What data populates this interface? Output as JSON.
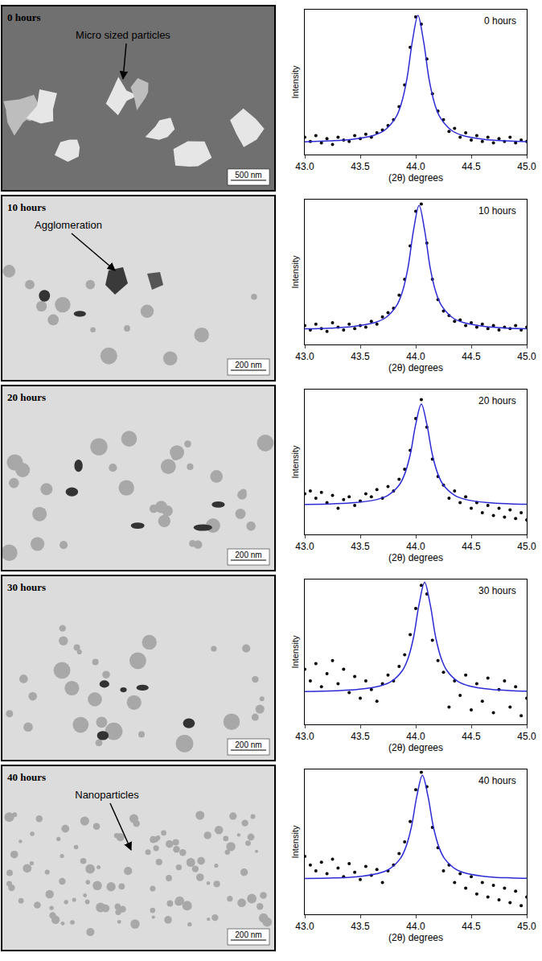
{
  "micrographs": [
    {
      "label": "0 hours",
      "annotation": "Micro sized particles",
      "scale_bar": "500 nm"
    },
    {
      "label": "10 hours",
      "annotation": "Agglomeration",
      "scale_bar": "200 nm"
    },
    {
      "label": "20 hours",
      "scale_bar": "200 nm"
    },
    {
      "label": "30 hours",
      "scale_bar": "200 nm"
    },
    {
      "label": "40 hours",
      "annotation": "Nanoparticles",
      "scale_bar": "200 nm"
    }
  ],
  "chart_data": [
    {
      "type": "scatter",
      "annotations": [
        "0 hours"
      ],
      "x_label": "(2θ) degrees",
      "y_label": "Intensity",
      "xlim": [
        43,
        45
      ],
      "xticks": [
        {
          "value": 43,
          "label": "43.0"
        },
        43.5,
        {
          "value": 44,
          "label": "44.0"
        },
        44.5,
        {
          "value": 45,
          "label": "45.0"
        }
      ],
      "ylim": [
        0,
        100
      ],
      "tick_labels": "x",
      "series": [
        {
          "type": "scatter",
          "color": "#000000",
          "marker": "circle",
          "x": [
            43.0,
            43.05,
            43.1,
            43.15,
            43.2,
            43.25,
            43.3,
            43.35,
            43.4,
            43.45,
            43.5,
            43.55,
            43.6,
            43.65,
            43.7,
            43.75,
            43.8,
            43.85,
            43.9,
            43.95,
            44.0,
            44.05,
            44.1,
            44.15,
            44.2,
            44.25,
            44.3,
            44.35,
            44.4,
            44.45,
            44.5,
            44.55,
            44.6,
            44.65,
            44.7,
            44.75,
            44.8,
            44.85,
            44.9,
            44.95,
            45.0
          ],
          "values": [
            12,
            9,
            13,
            8,
            11,
            7,
            12,
            10,
            9,
            13,
            11,
            14,
            12,
            15,
            17,
            20,
            24,
            33,
            48,
            74,
            95,
            90,
            66,
            42,
            30,
            24,
            16,
            18,
            12,
            15,
            10,
            13,
            9,
            12,
            8,
            11,
            9,
            12,
            8,
            10,
            9
          ]
        },
        {
          "type": "line",
          "color": "#2b2bd6",
          "line_style": "solid",
          "x": [
            43.0,
            43.22,
            43.42,
            43.62,
            43.72,
            43.82,
            43.87,
            43.92,
            43.97,
            44.02,
            44.07,
            44.12,
            44.17,
            44.22,
            44.32,
            44.42,
            44.62,
            44.82,
            45.0
          ],
          "values": [
            8.8,
            9.4,
            10.4,
            13.2,
            16.8,
            25.6,
            35.1,
            52,
            78.4,
            96,
            78.4,
            52,
            35.1,
            25.6,
            16.8,
            13.2,
            10.4,
            9.4,
            8.9
          ]
        }
      ]
    },
    {
      "type": "scatter",
      "annotations": [
        "10 hours"
      ],
      "x_label": "(2θ) degrees",
      "y_label": "Intensity",
      "xlim": [
        43,
        45
      ],
      "xticks": [
        {
          "value": 43,
          "label": "43.0"
        },
        43.5,
        {
          "value": 44,
          "label": "44.0"
        },
        44.5,
        {
          "value": 45,
          "label": "45.0"
        }
      ],
      "ylim": [
        0,
        100
      ],
      "tick_labels": "x",
      "series": [
        {
          "type": "scatter",
          "color": "#000000",
          "marker": "circle",
          "x": [
            43.0,
            43.05,
            43.1,
            43.15,
            43.2,
            43.25,
            43.3,
            43.35,
            43.4,
            43.45,
            43.5,
            43.55,
            43.6,
            43.65,
            43.7,
            43.75,
            43.8,
            43.85,
            43.9,
            43.95,
            44.0,
            44.05,
            44.1,
            44.15,
            44.2,
            44.25,
            44.3,
            44.35,
            44.4,
            44.45,
            44.5,
            44.55,
            44.6,
            44.65,
            44.7,
            44.75,
            44.8,
            44.85,
            44.9,
            44.95,
            45.0
          ],
          "values": [
            13,
            10,
            14,
            11,
            9,
            15,
            12,
            10,
            14,
            11,
            13,
            12,
            16,
            14,
            19,
            22,
            25,
            34,
            45,
            68,
            92,
            97,
            70,
            45,
            31,
            23,
            20,
            16,
            17,
            13,
            15,
            12,
            14,
            11,
            13,
            10,
            12,
            11,
            13,
            10,
            12
          ]
        },
        {
          "type": "line",
          "color": "#2b2bd6",
          "line_style": "solid",
          "x": [
            43.0,
            43.23,
            43.43,
            43.63,
            43.73,
            43.83,
            43.88,
            43.93,
            43.98,
            44.03,
            44.08,
            44.13,
            44.18,
            44.23,
            44.33,
            44.43,
            44.63,
            44.83,
            45.0
          ],
          "values": [
            10.8,
            11.3,
            12.3,
            15.1,
            18.6,
            27.2,
            36.5,
            53,
            78.8,
            96,
            78.8,
            53,
            36.5,
            27.2,
            18.6,
            15.1,
            12.3,
            11.3,
            10.9
          ]
        }
      ]
    },
    {
      "type": "scatter",
      "annotations": [
        "20 hours"
      ],
      "x_label": "(2θ) degrees",
      "y_label": "Intensity",
      "xlim": [
        43,
        45
      ],
      "xticks": [
        {
          "value": 43,
          "label": "43.0"
        },
        43.5,
        {
          "value": 44,
          "label": "44.0"
        },
        44.5,
        {
          "value": 45,
          "label": "45.0"
        }
      ],
      "ylim": [
        0,
        100
      ],
      "tick_labels": "x",
      "series": [
        {
          "type": "scatter",
          "color": "#000000",
          "marker": "circle",
          "x": [
            43.0,
            43.05,
            43.1,
            43.15,
            43.2,
            43.25,
            43.3,
            43.35,
            43.4,
            43.45,
            43.5,
            43.55,
            43.6,
            43.65,
            43.7,
            43.75,
            43.8,
            43.85,
            43.9,
            43.95,
            44.0,
            44.05,
            44.1,
            44.15,
            44.2,
            44.25,
            44.3,
            44.35,
            44.4,
            44.45,
            44.5,
            44.55,
            44.6,
            44.65,
            44.7,
            44.75,
            44.8,
            44.85,
            44.9,
            44.95,
            45.0
          ],
          "values": [
            28,
            30,
            25,
            29,
            22,
            27,
            18,
            24,
            26,
            20,
            23,
            28,
            26,
            31,
            25,
            33,
            30,
            38,
            45,
            58,
            80,
            93,
            74,
            52,
            40,
            34,
            25,
            30,
            22,
            26,
            18,
            22,
            15,
            20,
            13,
            18,
            12,
            17,
            11,
            15,
            10
          ]
        },
        {
          "type": "line",
          "color": "#2b2bd6",
          "line_style": "solid",
          "x": [
            43.0,
            43.25,
            43.45,
            43.65,
            43.75,
            43.85,
            43.9,
            43.95,
            44.0,
            44.05,
            44.1,
            44.15,
            44.2,
            44.25,
            44.35,
            44.45,
            44.65,
            44.85,
            45.0
          ],
          "values": [
            20.7,
            21.1,
            21.9,
            24.1,
            27,
            34,
            41.6,
            55,
            76,
            90,
            76,
            55,
            41.6,
            34,
            27,
            24.1,
            21.9,
            21.1,
            20.8
          ]
        }
      ]
    },
    {
      "type": "scatter",
      "annotations": [
        "30 hours"
      ],
      "x_label": "(2θ) degrees",
      "y_label": "Intensity",
      "xlim": [
        43,
        45
      ],
      "xticks": [
        {
          "value": 43,
          "label": "43.0"
        },
        43.5,
        {
          "value": 44,
          "label": "44.0"
        },
        44.5,
        {
          "value": 45,
          "label": "45.0"
        }
      ],
      "ylim": [
        0,
        100
      ],
      "tick_labels": "x",
      "series": [
        {
          "type": "scatter",
          "color": "#000000",
          "marker": "circle",
          "x": [
            43.0,
            43.05,
            43.1,
            43.15,
            43.2,
            43.25,
            43.3,
            43.35,
            43.4,
            43.45,
            43.5,
            43.55,
            43.6,
            43.65,
            43.7,
            43.75,
            43.8,
            43.85,
            43.9,
            43.95,
            44.0,
            44.05,
            44.1,
            44.15,
            44.2,
            44.25,
            44.3,
            44.35,
            44.4,
            44.45,
            44.5,
            44.55,
            44.6,
            44.65,
            44.7,
            44.75,
            44.8,
            44.85,
            44.9,
            44.95,
            45.0
          ],
          "values": [
            38,
            30,
            42,
            26,
            35,
            44,
            28,
            38,
            22,
            33,
            18,
            30,
            24,
            16,
            28,
            34,
            30,
            40,
            48,
            62,
            80,
            96,
            90,
            58,
            44,
            36,
            12,
            30,
            20,
            34,
            10,
            28,
            16,
            32,
            8,
            24,
            30,
            12,
            26,
            6,
            18
          ]
        },
        {
          "type": "line",
          "color": "#2b2bd6",
          "line_style": "solid",
          "x": [
            43.0,
            43.28,
            43.48,
            43.68,
            43.78,
            43.88,
            43.93,
            43.98,
            44.03,
            44.08,
            44.13,
            44.18,
            44.23,
            44.28,
            44.38,
            44.48,
            44.68,
            44.88,
            45.0
          ],
          "values": [
            22.6,
            23.2,
            24.1,
            26.5,
            29.6,
            37.2,
            45.4,
            60,
            82.8,
            98,
            82.8,
            60,
            45.4,
            37.2,
            29.6,
            26.5,
            24.1,
            23.2,
            22.9
          ]
        }
      ]
    },
    {
      "type": "scatter",
      "annotations": [
        "40 hours"
      ],
      "x_label": "(2θ) degrees",
      "y_label": "Intensity",
      "xlim": [
        43,
        45
      ],
      "xticks": [
        {
          "value": 43,
          "label": "43.0"
        },
        43.5,
        {
          "value": 44,
          "label": "44.0"
        },
        44.5,
        {
          "value": 45,
          "label": "45.0"
        }
      ],
      "ylim": [
        0,
        100
      ],
      "tick_labels": "x",
      "series": [
        {
          "type": "scatter",
          "color": "#000000",
          "marker": "circle",
          "x": [
            43.0,
            43.05,
            43.1,
            43.15,
            43.2,
            43.25,
            43.3,
            43.35,
            43.4,
            43.45,
            43.5,
            43.55,
            43.6,
            43.65,
            43.7,
            43.75,
            43.8,
            43.85,
            43.9,
            43.95,
            44.0,
            44.05,
            44.1,
            44.15,
            44.2,
            44.25,
            44.3,
            44.35,
            44.4,
            44.45,
            44.5,
            44.55,
            44.6,
            44.65,
            44.7,
            44.75,
            44.8,
            44.85,
            44.9,
            44.95,
            45.0
          ],
          "values": [
            40,
            34,
            30,
            36,
            28,
            38,
            32,
            26,
            35,
            29,
            24,
            33,
            27,
            31,
            22,
            30,
            34,
            42,
            50,
            64,
            86,
            98,
            88,
            60,
            46,
            30,
            34,
            22,
            28,
            18,
            26,
            14,
            22,
            12,
            20,
            10,
            18,
            8,
            16,
            6,
            12
          ]
        },
        {
          "type": "line",
          "color": "#2b2bd6",
          "line_style": "solid",
          "x": [
            43.0,
            43.26,
            43.46,
            43.66,
            43.76,
            43.86,
            43.91,
            43.96,
            44.01,
            44.06,
            44.11,
            44.16,
            44.21,
            44.26,
            44.36,
            44.46,
            44.66,
            44.86,
            45.0
          ],
          "values": [
            24.7,
            25.1,
            25.9,
            28.2,
            31.2,
            38.4,
            46.2,
            60,
            81.6,
            96,
            81.6,
            60,
            46.2,
            38.4,
            31.2,
            28.2,
            25.9,
            25.1,
            24.8
          ]
        }
      ]
    }
  ]
}
